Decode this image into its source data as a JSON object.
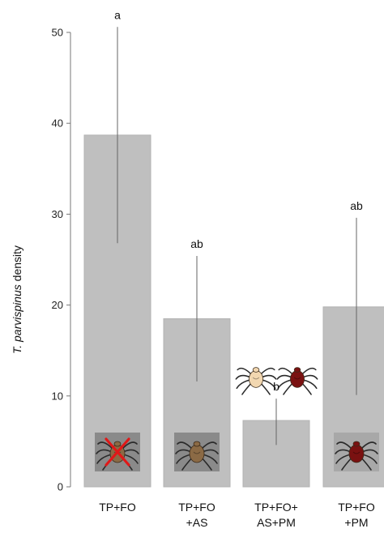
{
  "chart_data": {
    "type": "bar",
    "title": "",
    "ylabel": {
      "italic": "T. parvispinus",
      "rest": " density"
    },
    "xlabel": "",
    "ylim": [
      0,
      50
    ],
    "yticks": [
      "0",
      "10",
      "20",
      "30",
      "40",
      "50"
    ],
    "categories": [
      {
        "lines": [
          "TP+FO"
        ]
      },
      {
        "lines": [
          "TP+FO",
          "+AS"
        ]
      },
      {
        "lines": [
          "TP+FO+",
          "AS+PM"
        ]
      },
      {
        "lines": [
          "TP+FO",
          "+PM"
        ]
      }
    ],
    "values": [
      38.7,
      18.5,
      7.3,
      19.8
    ],
    "error_low": [
      26.8,
      11.6,
      4.6,
      10.1
    ],
    "error_high": [
      50.6,
      25.4,
      9.7,
      29.6
    ],
    "significance": [
      "a",
      "ab",
      "b",
      "ab"
    ],
    "bar_color": "#bfbfbf",
    "icons": [
      {
        "bar": 0,
        "name": "predatory-mite-icon-crossed",
        "color": "#8b6a45",
        "crossed": true
      },
      {
        "bar": 1,
        "name": "predatory-mite-icon",
        "color": "#8b6a45",
        "crossed": false
      },
      {
        "bar": 3,
        "name": "red-mite-icon",
        "color": "#7a1111",
        "crossed": false
      }
    ],
    "legend_icons": [
      {
        "name": "pale-mite-icon",
        "color": "#f2d7b0"
      },
      {
        "name": "red-mite-icon",
        "color": "#7a1111"
      }
    ]
  }
}
